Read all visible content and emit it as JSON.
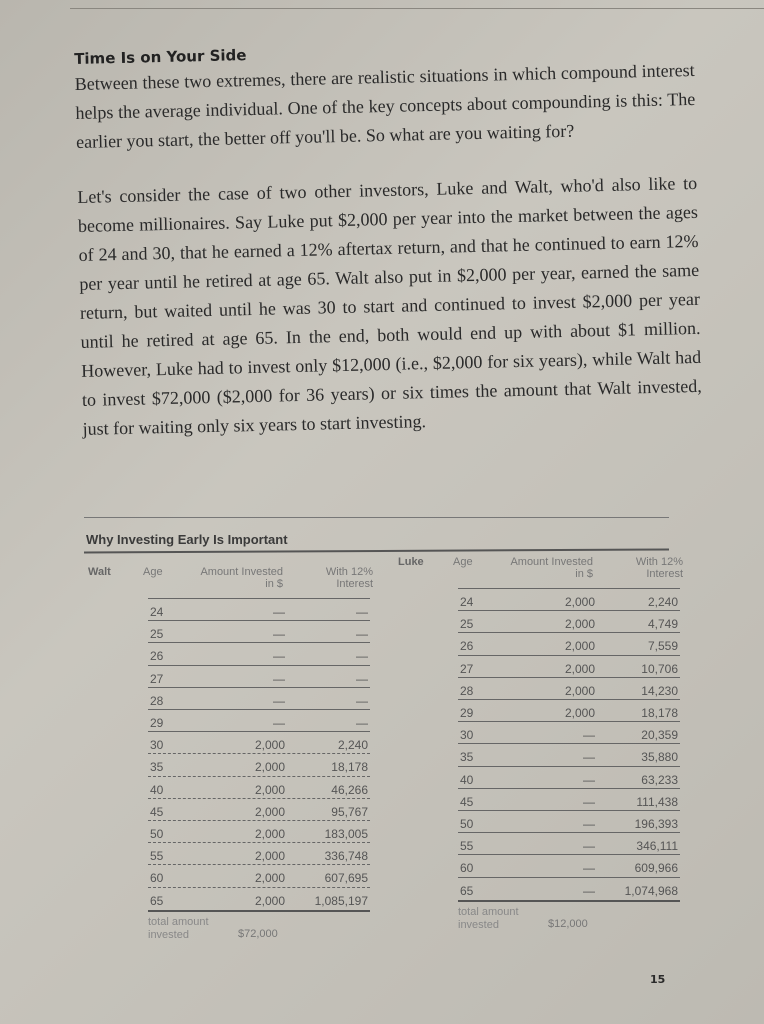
{
  "section_title": "Time Is on Your Side",
  "paragraphs": [
    "Between these two extremes, there are realistic situations in which compound interest helps the average individual. One of the key concepts about compounding is this: The earlier you start, the better off you'll be. So what are you waiting for?",
    "Let's consider the case of two other investors, Luke and Walt, who'd also like to become millionaires. Say Luke put $2,000 per year into the market between the ages of 24 and 30, that he earned a 12% aftertax return, and that he continued to earn 12% per year until he retired at age 65. Walt also put in $2,000 per year, earned the same return, but waited until he was 30 to start and continued to invest $2,000 per year until he retired at age 65. In the end, both would end up with about $1 million. However, Luke had to invest only $12,000 (i.e., $2,000 for six years), while Walt had to invest $72,000 ($2,000 for 36 years) or six times the amount that Walt invested, just for waiting only six years to start investing."
  ],
  "table_title": "Why Investing Early Is Important",
  "headers": {
    "age": "Age",
    "amount": "Amount Invested in $",
    "interest": "With 12% Interest",
    "total_label": "total amount invested"
  },
  "walt": {
    "name": "Walt",
    "total": "$72,000",
    "rows": [
      [
        "24",
        "—",
        "—"
      ],
      [
        "25",
        "—",
        "—"
      ],
      [
        "26",
        "—",
        "—"
      ],
      [
        "27",
        "—",
        "—"
      ],
      [
        "28",
        "—",
        "—"
      ],
      [
        "29",
        "—",
        "—"
      ],
      [
        "30",
        "2,000",
        "2,240"
      ],
      [
        "35",
        "2,000",
        "18,178"
      ],
      [
        "40",
        "2,000",
        "46,266"
      ],
      [
        "45",
        "2,000",
        "95,767"
      ],
      [
        "50",
        "2,000",
        "183,005"
      ],
      [
        "55",
        "2,000",
        "336,748"
      ],
      [
        "60",
        "2,000",
        "607,695"
      ],
      [
        "65",
        "2,000",
        "1,085,197"
      ]
    ]
  },
  "luke": {
    "name": "Luke",
    "total": "$12,000",
    "rows": [
      [
        "24",
        "2,000",
        "2,240"
      ],
      [
        "25",
        "2,000",
        "4,749"
      ],
      [
        "26",
        "2,000",
        "7,559"
      ],
      [
        "27",
        "2,000",
        "10,706"
      ],
      [
        "28",
        "2,000",
        "14,230"
      ],
      [
        "29",
        "2,000",
        "18,178"
      ],
      [
        "30",
        "—",
        "20,359"
      ],
      [
        "35",
        "—",
        "35,880"
      ],
      [
        "40",
        "—",
        "63,233"
      ],
      [
        "45",
        "—",
        "111,438"
      ],
      [
        "50",
        "—",
        "196,393"
      ],
      [
        "55",
        "—",
        "346,111"
      ],
      [
        "60",
        "—",
        "609,966"
      ],
      [
        "65",
        "—",
        "1,074,968"
      ]
    ]
  },
  "page_number": "15"
}
